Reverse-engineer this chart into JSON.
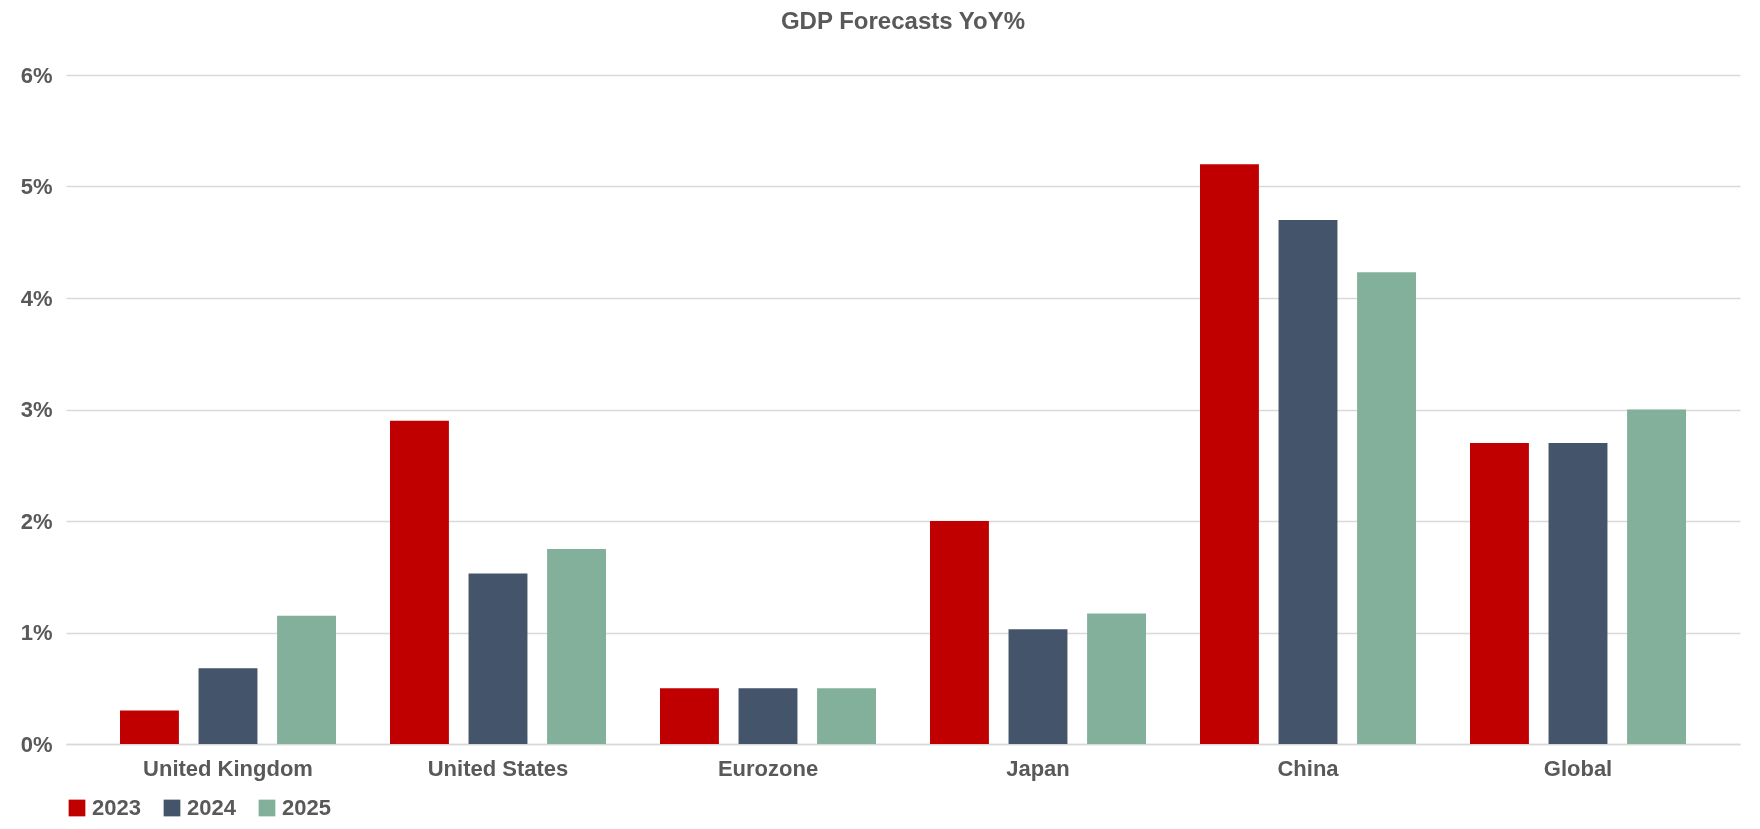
{
  "chart_data": {
    "type": "bar",
    "title": "GDP Forecasts YoY%",
    "categories": [
      "United Kingdom",
      "United States",
      "Eurozone",
      "Japan",
      "China",
      "Global"
    ],
    "series": [
      {
        "name": "2023",
        "color": "#c00000",
        "values": [
          0.3,
          2.9,
          0.5,
          2.0,
          5.2,
          2.7
        ]
      },
      {
        "name": "2024",
        "color": "#44546a",
        "values": [
          0.68,
          1.53,
          0.5,
          1.03,
          4.7,
          2.7
        ]
      },
      {
        "name": "2025",
        "color": "#82b09a",
        "values": [
          1.15,
          1.75,
          0.5,
          1.17,
          4.23,
          3.0
        ]
      }
    ],
    "ylim": [
      0,
      6
    ],
    "yticks": [
      {
        "value": 0,
        "label": "0%"
      },
      {
        "value": 1,
        "label": "1%"
      },
      {
        "value": 2,
        "label": "2%"
      },
      {
        "value": 3,
        "label": "3%"
      },
      {
        "value": 4,
        "label": "4%"
      },
      {
        "value": 5,
        "label": "5%"
      },
      {
        "value": 6,
        "label": "6%"
      }
    ],
    "grid": "y",
    "legend": "bottom"
  }
}
